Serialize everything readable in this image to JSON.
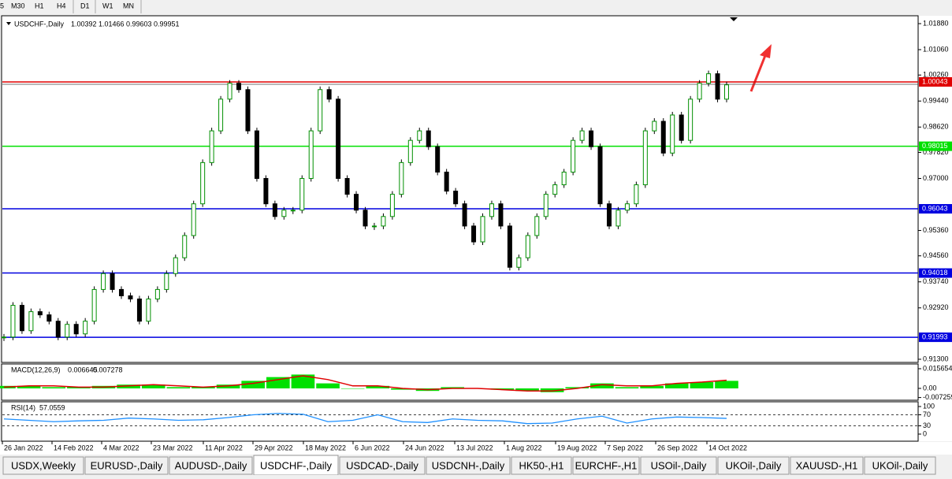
{
  "toolbar": [
    "5",
    "M30",
    "H1",
    "H4",
    "D1",
    "W1",
    "MN"
  ],
  "chart": {
    "type": "candlestick",
    "title": "USDCHF-,Daily",
    "ohlc": [
      1.00392,
      1.01466,
      0.99603,
      0.99951
    ],
    "ylim": [
      0.913,
      1.0188
    ],
    "yticks": [
      {
        "value": 1.0188,
        "label": "1.01880"
      },
      {
        "value": 1.0106,
        "label": "1.01060"
      },
      {
        "value": 1.0026,
        "label": "1.00260"
      },
      {
        "value": 0.9944,
        "label": "0.99440"
      },
      {
        "value": 0.9862,
        "label": "0.98620"
      },
      {
        "value": 0.9782,
        "label": "0.97820"
      },
      {
        "value": 0.97,
        "label": "0.97000"
      },
      {
        "value": 0.9536,
        "label": "0.95360"
      },
      {
        "value": 0.9456,
        "label": "0.94560"
      },
      {
        "value": 0.9374,
        "label": "0.93740"
      },
      {
        "value": 0.9292,
        "label": "0.92920"
      },
      {
        "value": 0.913,
        "label": "0.91300"
      }
    ],
    "levels": [
      {
        "value": 1.00043,
        "color": "#e00000"
      },
      {
        "value": 0.98015,
        "color": "#00e000"
      },
      {
        "value": 0.96043,
        "color": "#0000e0"
      },
      {
        "value": 0.94018,
        "color": "#0000e0"
      },
      {
        "value": 0.91993,
        "color": "#0000e0"
      }
    ],
    "closes": [
      0.92,
      0.93,
      0.922,
      0.928,
      0.927,
      0.925,
      0.92,
      0.924,
      0.921,
      0.925,
      0.935,
      0.94,
      0.935,
      0.933,
      0.932,
      0.925,
      0.932,
      0.935,
      0.94,
      0.945,
      0.952,
      0.962,
      0.975,
      0.985,
      0.995,
      1.0,
      0.998,
      0.985,
      0.97,
      0.962,
      0.958,
      0.96,
      0.96,
      0.97,
      0.985,
      0.998,
      0.995,
      0.97,
      0.965,
      0.96,
      0.955,
      0.955,
      0.958,
      0.965,
      0.975,
      0.982,
      0.985,
      0.98,
      0.972,
      0.966,
      0.962,
      0.955,
      0.95,
      0.958,
      0.962,
      0.955,
      0.942,
      0.945,
      0.952,
      0.958,
      0.965,
      0.968,
      0.972,
      0.982,
      0.985,
      0.98,
      0.962,
      0.955,
      0.96,
      0.962,
      0.968,
      0.985,
      0.988,
      0.978,
      0.99,
      0.982,
      0.995,
      1.0,
      1.003,
      0.995,
      0.9995
    ],
    "dates": [
      "26 Jan 2022",
      "14 Feb 2022",
      "4 Mar 2022",
      "23 Mar 2022",
      "11 Apr 2022",
      "29 Apr 2022",
      "18 May 2022",
      "6 Jun 2022",
      "24 Jun 2022",
      "13 Jul 2022",
      "1 Aug 2022",
      "19 Aug 2022",
      "7 Sep 2022",
      "26 Sep 2022",
      "14 Oct 2022"
    ]
  },
  "macd": {
    "label": "MACD(12,26,9)",
    "main": 0.006645,
    "signal_value": 0.007278,
    "ylim": [
      -0.007259,
      0.015654
    ],
    "yticks": [
      0.015654,
      {
        "value": 0,
        "label": "0.00"
      },
      -0.007259
    ],
    "histogram": [
      0.002,
      0.002,
      0.001,
      0.001,
      0.002,
      0.003,
      0.003,
      0.001,
      0.001,
      0.003,
      0.006,
      0.009,
      0.011,
      0.004,
      0,
      0.002,
      -0.001,
      -0.002,
      0.001,
      0,
      -0.001,
      -0.002,
      -0.003,
      0.001,
      0.004,
      0.001,
      0.002,
      0.004,
      0.005,
      0.006
    ],
    "signal": [
      0.001,
      0.002,
      0.002,
      0.001,
      0.001,
      0.002,
      0.003,
      0.002,
      0.001,
      0.002,
      0.004,
      0.007,
      0.01,
      0.007,
      0.002,
      0.002,
      0,
      -0.001,
      0,
      0,
      -0.001,
      -0.002,
      -0.002,
      0,
      0.003,
      0.002,
      0.002,
      0.004,
      0.005,
      0.0065
    ]
  },
  "rsi": {
    "label": "RSI(14)",
    "value": 57.0559,
    "ylim": [
      0,
      100
    ],
    "yticks": [
      100,
      70,
      30,
      0
    ],
    "levels": [
      70,
      30
    ],
    "values": [
      55,
      50,
      45,
      48,
      50,
      58,
      55,
      50,
      52,
      60,
      70,
      75,
      72,
      45,
      50,
      70,
      45,
      42,
      55,
      50,
      48,
      38,
      40,
      55,
      65,
      40,
      55,
      62,
      60,
      57
    ]
  },
  "tabs": [
    "USDX,Weekly",
    "EURUSD-,Daily",
    "AUDUSD-,Daily",
    "USDCHF-,Daily",
    "USDCAD-,Daily",
    "USDCNH-,Daily",
    "HK50-,H1",
    "EURCHF-,H1",
    "USOil-,Daily",
    "UKOil-,Daily",
    "XAUUSD-,H1",
    "UKOil-,Daily"
  ],
  "active_tab": 3
}
